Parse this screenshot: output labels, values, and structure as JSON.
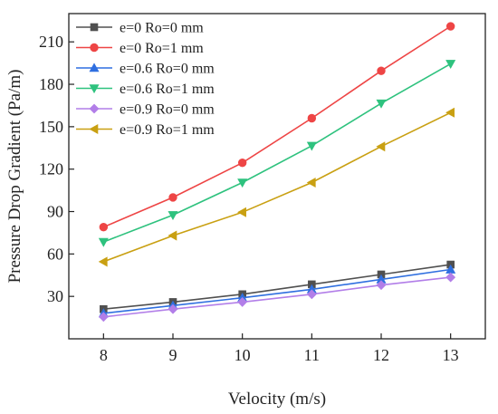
{
  "chart_data": {
    "type": "line",
    "title": "",
    "xlabel": "Velocity (m/s)",
    "ylabel": "Pressure Drop Gradient (Pa/m)",
    "x": [
      8,
      9,
      10,
      11,
      12,
      13
    ],
    "xlim": [
      7.5,
      13.5
    ],
    "ylim": [
      0,
      230
    ],
    "xticks": [
      "8",
      "9",
      "10",
      "11",
      "12",
      "13"
    ],
    "yticks": [
      "30",
      "60",
      "90",
      "120",
      "150",
      "180",
      "210"
    ],
    "grid": false,
    "legend_position": "top-left",
    "series": [
      {
        "name": "e=0 Ro=0 mm",
        "color": "#505050",
        "marker": "square",
        "values": [
          21,
          26,
          31.5,
          38.5,
          45.5,
          52.5
        ]
      },
      {
        "name": "e=0 Ro=1 mm",
        "color": "#ee4545",
        "marker": "circle",
        "values": [
          79,
          100,
          124.5,
          156,
          189.5,
          221
        ]
      },
      {
        "name": "e=0.6 Ro=0 mm",
        "color": "#2f6fe0",
        "marker": "triangle-up",
        "values": [
          18,
          23.5,
          29,
          35,
          42,
          49
        ]
      },
      {
        "name": "e=0.6 Ro=1 mm",
        "color": "#2ec27e",
        "marker": "triangle-down",
        "values": [
          68.5,
          87.5,
          110.5,
          136.5,
          166.5,
          194.5
        ]
      },
      {
        "name": "e=0.9 Ro=0 mm",
        "color": "#b27ee8",
        "marker": "diamond",
        "values": [
          15.5,
          21,
          26,
          31.5,
          38,
          43.5
        ]
      },
      {
        "name": "e=0.9 Ro=1 mm",
        "color": "#c9a012",
        "marker": "triangle-left",
        "values": [
          54.5,
          73,
          89.5,
          110.5,
          136,
          160
        ]
      }
    ]
  }
}
